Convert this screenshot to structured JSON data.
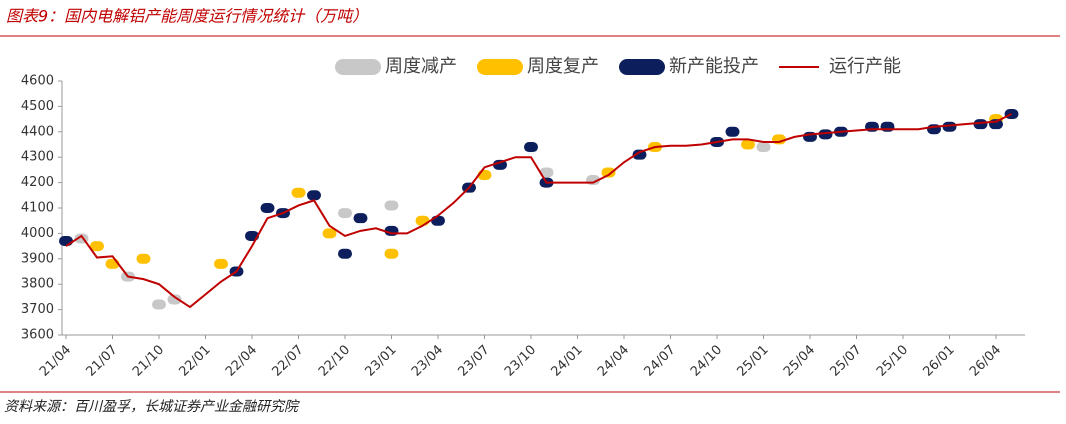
{
  "chart_data": {
    "type": "line",
    "title": "图表9：国内电解铝产能周度运行情况统计（万吨）",
    "source": "资料来源：百川盈孚，长城证券产业金融研究院",
    "x": [
      "21/04",
      null,
      null,
      "21/07",
      null,
      null,
      "21/10",
      null,
      null,
      "22/01",
      null,
      null,
      "22/04",
      null,
      null,
      "22/07",
      null,
      null,
      "22/10",
      null,
      null,
      "23/01",
      null,
      null,
      "23/04",
      null,
      null,
      "23/07",
      null,
      null,
      "23/10",
      null,
      null,
      "24/01",
      null,
      null,
      "24/04",
      null,
      null,
      "24/07",
      null,
      null,
      "24/10",
      null,
      null,
      "25/01",
      null,
      null,
      "25/04",
      null,
      null,
      "25/07",
      null,
      null,
      "25/10",
      null,
      null,
      "26/01",
      null,
      null,
      "26/04",
      null
    ],
    "ylim": [
      3600,
      4600
    ],
    "yticks": [
      3600,
      3700,
      3800,
      3900,
      4000,
      4100,
      4200,
      4300,
      4400,
      4500,
      4600
    ],
    "series": [
      {
        "name": "周度减产",
        "type": "scatter",
        "color": "#c8c8c8",
        "values": [
          null,
          3980,
          null,
          null,
          3830,
          null,
          3720,
          3740,
          null,
          null,
          null,
          null,
          null,
          null,
          null,
          null,
          null,
          null,
          4080,
          null,
          null,
          4110,
          null,
          null,
          null,
          null,
          null,
          null,
          null,
          null,
          null,
          4240,
          null,
          null,
          4210,
          null,
          null,
          null,
          null,
          null,
          null,
          null,
          null,
          null,
          null,
          4340,
          null,
          null,
          null,
          null,
          4400,
          null,
          null,
          null,
          null,
          null,
          null,
          null,
          null,
          null,
          null,
          null
        ]
      },
      {
        "name": "周度复产",
        "type": "scatter",
        "color": "#ffc000",
        "values": [
          null,
          null,
          3950,
          3880,
          null,
          3900,
          null,
          null,
          null,
          null,
          3880,
          null,
          null,
          null,
          null,
          4160,
          null,
          4000,
          null,
          null,
          null,
          3920,
          null,
          4050,
          null,
          null,
          null,
          4230,
          null,
          null,
          null,
          null,
          null,
          null,
          null,
          4240,
          null,
          null,
          4340,
          null,
          null,
          null,
          null,
          null,
          4350,
          null,
          4370,
          null,
          null,
          null,
          null,
          null,
          null,
          null,
          null,
          null,
          null,
          null,
          null,
          null,
          4450,
          null
        ]
      },
      {
        "name": "新产能投产",
        "type": "scatter",
        "color": "#0c1f5c",
        "values": [
          3970,
          null,
          null,
          null,
          null,
          null,
          null,
          null,
          null,
          null,
          null,
          3850,
          3990,
          4100,
          4080,
          null,
          4150,
          null,
          3920,
          4060,
          null,
          4010,
          null,
          null,
          4050,
          null,
          4180,
          null,
          4270,
          null,
          4340,
          4200,
          null,
          null,
          null,
          null,
          null,
          4310,
          null,
          null,
          null,
          null,
          4360,
          4400,
          null,
          null,
          null,
          null,
          4380,
          4390,
          4400,
          null,
          4420,
          4420,
          null,
          null,
          4410,
          4420,
          null,
          4430,
          4430,
          4470
        ]
      },
      {
        "name": "运行产能",
        "type": "line",
        "color": "#c00000",
        "values": [
          3950,
          3990,
          3905,
          3910,
          3830,
          3820,
          3800,
          3750,
          3710,
          3760,
          3810,
          3850,
          3950,
          4060,
          4080,
          4110,
          4130,
          4030,
          3990,
          4010,
          4020,
          4000,
          4000,
          4030,
          4070,
          4120,
          4180,
          4260,
          4280,
          4300,
          4300,
          4200,
          4200,
          4200,
          4200,
          4230,
          4280,
          4320,
          4340,
          4345,
          4345,
          4350,
          4360,
          4370,
          4370,
          4360,
          4360,
          4380,
          4390,
          4395,
          4400,
          4405,
          4410,
          4410,
          4410,
          4410,
          4420,
          4425,
          4430,
          4435,
          4440,
          4470
        ]
      }
    ]
  }
}
